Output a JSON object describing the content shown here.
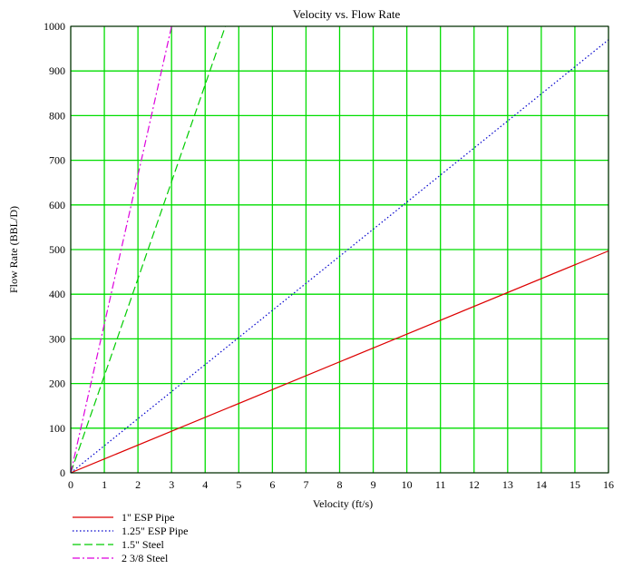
{
  "chart_data": {
    "type": "line",
    "title": "Velocity vs. Flow Rate",
    "xlabel": "Velocity (ft/s)",
    "ylabel": "Flow Rate (BBL/D)",
    "xlim": [
      0,
      16
    ],
    "ylim": [
      0,
      1000
    ],
    "xticks": [
      0,
      1,
      2,
      3,
      4,
      5,
      6,
      7,
      8,
      9,
      10,
      11,
      12,
      13,
      14,
      15,
      16
    ],
    "yticks": [
      0,
      100,
      200,
      300,
      400,
      500,
      600,
      700,
      800,
      900,
      1000
    ],
    "grid": true,
    "grid_color": "#00dd00",
    "legend_position": "bottom-left",
    "series": [
      {
        "name": "1\" ESP Pipe",
        "color": "#dd0000",
        "style": "solid",
        "x": [
          0,
          16
        ],
        "y": [
          0,
          497
        ]
      },
      {
        "name": "1.25\" ESP Pipe",
        "color": "#0000cc",
        "style": "dotted",
        "x": [
          0,
          16
        ],
        "y": [
          0,
          970
        ]
      },
      {
        "name": "1.5\" Steel",
        "color": "#00cc00",
        "style": "dashed",
        "x": [
          0,
          4.6
        ],
        "y": [
          0,
          1000
        ]
      },
      {
        "name": "2 3/8 Steel",
        "color": "#dd00dd",
        "style": "dash-dot",
        "x": [
          0,
          3.0
        ],
        "y": [
          0,
          1000
        ]
      }
    ]
  }
}
